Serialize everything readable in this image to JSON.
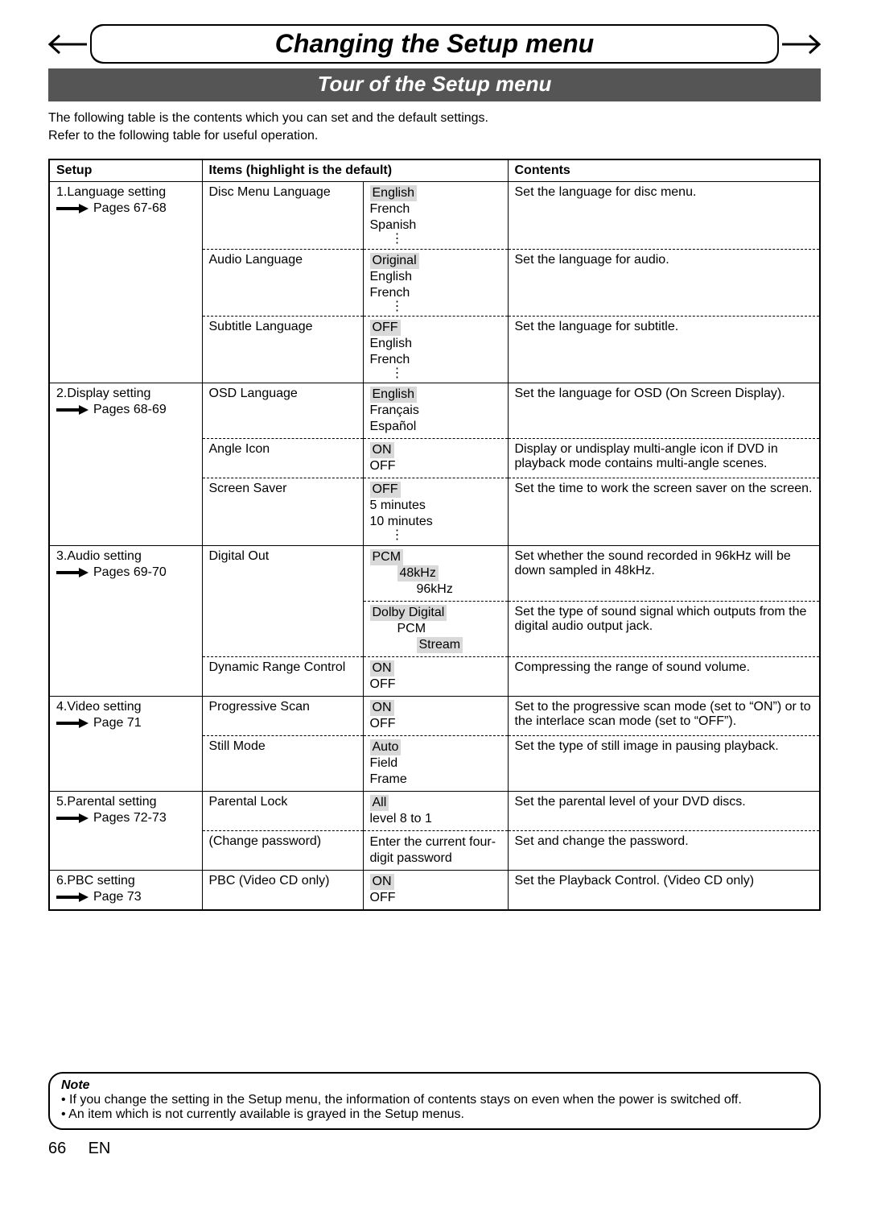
{
  "header": {
    "main_title": "Changing the Setup menu",
    "sub_title": "Tour of the Setup menu",
    "intro_line1": "The following table is the contents which you can set and the default settings.",
    "intro_line2": "Refer to the following table for useful operation."
  },
  "table": {
    "cols": {
      "setup": "Setup",
      "items": "Items (highlight is the default)",
      "contents": "Contents"
    },
    "sections": [
      {
        "setup_title": "1.Language setting",
        "page_ref": "Pages 67-68",
        "rows": [
          {
            "item": "Disc Menu Language",
            "values": [
              "English",
              "French",
              "Spanish"
            ],
            "default_index": 0,
            "ellipsis": true,
            "contents": "Set the language for disc menu."
          },
          {
            "item": "Audio Language",
            "values": [
              "Original",
              "English",
              "French"
            ],
            "default_index": 0,
            "ellipsis": true,
            "contents": "Set the language for audio."
          },
          {
            "item": "Subtitle Language",
            "values": [
              "OFF",
              "English",
              "French"
            ],
            "default_index": 0,
            "ellipsis": true,
            "contents": "Set the language for subtitle."
          }
        ]
      },
      {
        "setup_title": "2.Display setting",
        "page_ref": "Pages 68-69",
        "rows": [
          {
            "item": "OSD Language",
            "values": [
              "English",
              "Français",
              "Español"
            ],
            "default_index": 0,
            "contents": "Set the language for OSD (On Screen Display)."
          },
          {
            "item": "Angle Icon",
            "values": [
              "ON",
              "OFF"
            ],
            "default_index": 0,
            "contents": "Display or undisplay multi-angle icon if DVD in playback mode contains multi-angle scenes."
          },
          {
            "item": "Screen Saver",
            "values": [
              "OFF",
              "5 minutes",
              "10 minutes"
            ],
            "default_index": 0,
            "ellipsis": true,
            "contents": "Set the time to work the screen saver on the screen."
          }
        ]
      },
      {
        "setup_title": "3.Audio setting",
        "page_ref": "Pages 69-70",
        "rows": [
          {
            "item": "Digital Out",
            "complex": [
              {
                "label": "PCM",
                "default": true,
                "sub": [
                  "48kHz",
                  "96kHz"
                ],
                "sub_default": 0
              },
              {
                "label": "Dolby Digital",
                "default": true,
                "sub": [
                  "PCM",
                  "Stream"
                ],
                "sub_default": 1
              }
            ],
            "contents_multi": [
              "Set whether the sound recorded in 96kHz will be down sampled in 48kHz.",
              "Set the type of sound signal which outputs from the digital audio output jack."
            ]
          },
          {
            "item": "Dynamic Range Control",
            "values": [
              "ON",
              "OFF"
            ],
            "default_index": 0,
            "contents": "Compressing the range of sound volume."
          }
        ]
      },
      {
        "setup_title": "4.Video setting",
        "page_ref": "Page 71",
        "rows": [
          {
            "item": "Progressive Scan",
            "values": [
              "ON",
              "OFF"
            ],
            "default_index": 0,
            "contents": "Set to the progressive scan mode (set to “ON”) or to the interlace scan mode (set to “OFF”)."
          },
          {
            "item": "Still Mode",
            "values": [
              "Auto",
              "Field",
              "Frame"
            ],
            "default_index": 0,
            "contents": "Set the type of still image in pausing playback."
          }
        ]
      },
      {
        "setup_title": "5.Parental setting",
        "page_ref": "Pages 72-73",
        "rows": [
          {
            "item": "Parental Lock",
            "values": [
              "All",
              "level 8 to 1"
            ],
            "default_index": 0,
            "contents": "Set the parental level of your DVD discs.",
            "contents_justify": true
          },
          {
            "item": "(Change password)",
            "values": [
              "Enter the current four-digit password"
            ],
            "default_index": -1,
            "contents": "Set and change the password."
          }
        ]
      },
      {
        "setup_title": "6.PBC setting",
        "page_ref": "Page 73",
        "rows": [
          {
            "item": "PBC (Video CD only)",
            "values": [
              "ON",
              "OFF"
            ],
            "default_index": 0,
            "contents": "Set the Playback Control. (Video CD only)"
          }
        ]
      }
    ]
  },
  "note": {
    "head": "Note",
    "items": [
      "If you change the setting in the Setup menu, the information of contents stays on even when the power is switched off.",
      "An item which is not currently available is grayed in the Setup menus."
    ]
  },
  "footer": {
    "page_num": "66",
    "lang": "EN"
  }
}
